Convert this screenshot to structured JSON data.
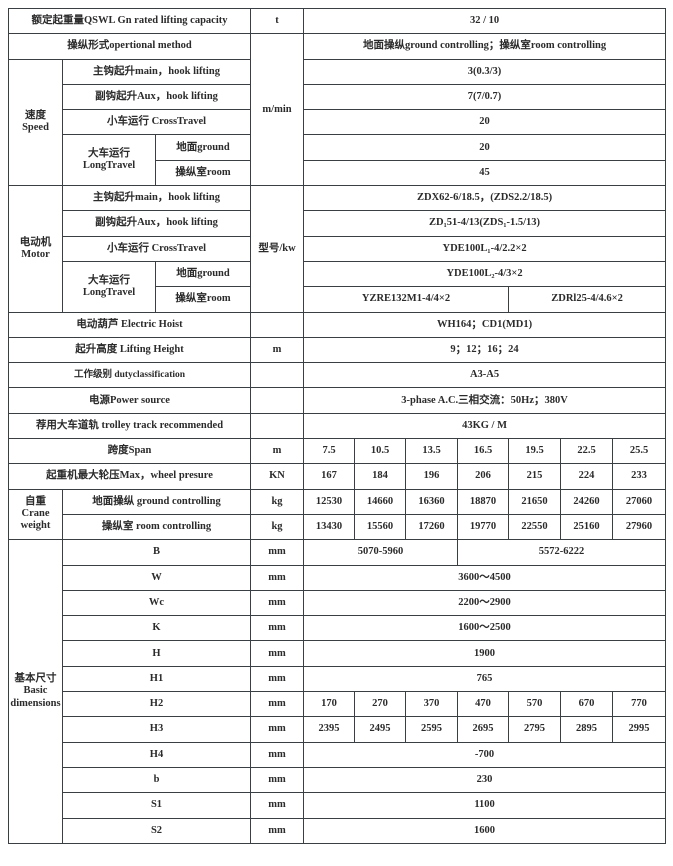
{
  "capacity": {
    "label": "额定起重量QSWL Gn rated lifting capacity",
    "unit": "t",
    "value": "32 / 10"
  },
  "method": {
    "label": "操纵形式opertional method",
    "value": "地面操纵ground controlling；操纵室room controlling"
  },
  "speed": {
    "group_cn": "速度",
    "group_en": "Speed",
    "unit": "m/min",
    "main": {
      "label": "主钩起升main，hook lifting",
      "value": "3(0.3/3)"
    },
    "aux": {
      "label": "副钩起升Aux，hook lifting",
      "value": "7(7/0.7)"
    },
    "cross": {
      "label": "小车运行 CrossTravel",
      "value": "20"
    },
    "long": {
      "label_cn": "大车运行",
      "label_en": "LongTravel",
      "ground": {
        "label": "地面ground",
        "value": "20"
      },
      "room": {
        "label": "操纵室room",
        "value": "45"
      }
    }
  },
  "motor": {
    "group_cn": "电动机",
    "group_en": "Motor",
    "unit": "型号/kw",
    "main": {
      "label": "主钩起升main，hook lifting",
      "value": "ZDX62-6/18.5，(ZDS2.2/18.5)"
    },
    "aux": {
      "label": "副钩起升Aux，hook lifting",
      "value": "ZD₁51-4/13(ZDS₁-1.5/13)"
    },
    "cross": {
      "label": "小车运行 CrossTravel",
      "value": "YDE100L₁-4/2.2×2"
    },
    "long": {
      "label_cn": "大车运行",
      "label_en": "LongTravel",
      "ground": {
        "label": "地面ground",
        "value": "YDE100L₂-4/3×2"
      },
      "room": {
        "label": "操纵室room",
        "values": [
          "YZRE132M1-4/4×2",
          "ZDRl25-4/4.6×2"
        ]
      }
    }
  },
  "hoist": {
    "label": "电动葫芦 Electric Hoist",
    "value": "WH164；CD1(MD1)"
  },
  "height": {
    "label": "起升高度 Lifting Height",
    "unit": "m",
    "value": "9；12；16；24"
  },
  "duty": {
    "label": "工作级别 dutyclassification",
    "value": "A3-A5"
  },
  "power": {
    "label": "电源Power source",
    "value": "3-phase A.C.三相交流：50Hz；380V"
  },
  "track": {
    "label": "荐用大车道轨 trolley track recommended",
    "value": "43KG / M"
  },
  "span": {
    "label": "跨度Span",
    "unit": "m",
    "values": [
      "7.5",
      "10.5",
      "13.5",
      "16.5",
      "19.5",
      "22.5",
      "25.5"
    ]
  },
  "wheel": {
    "label": "起重机最大轮压Max，wheel presure",
    "unit": "KN",
    "values": [
      "167",
      "184",
      "196",
      "206",
      "215",
      "224",
      "233"
    ]
  },
  "weight": {
    "group_cn": "自重",
    "group_en": "Crane weight",
    "ground": {
      "label": "地面操纵 ground controlling",
      "unit": "kg",
      "values": [
        "12530",
        "14660",
        "16360",
        "18870",
        "21650",
        "24260",
        "27060"
      ]
    },
    "room": {
      "label": "操纵室 room controlling",
      "unit": "kg",
      "values": [
        "13430",
        "15560",
        "17260",
        "19770",
        "22550",
        "25160",
        "27960"
      ]
    }
  },
  "dims": {
    "group_cn": "基本尺寸",
    "group_en": "Basic dimensions",
    "B": {
      "label": "B",
      "unit": "mm",
      "values": [
        "5070-5960",
        "5572-6222"
      ]
    },
    "W": {
      "label": "W",
      "unit": "mm",
      "value": "3600～4500"
    },
    "Wc": {
      "label": "Wc",
      "unit": "mm",
      "value": "2200～2900"
    },
    "K": {
      "label": "K",
      "unit": "mm",
      "value": "1600～2500"
    },
    "H": {
      "label": "H",
      "unit": "mm",
      "value": "1900"
    },
    "H1": {
      "label": "H1",
      "unit": "mm",
      "value": "765"
    },
    "H2": {
      "label": "H2",
      "unit": "mm",
      "values": [
        "170",
        "270",
        "370",
        "470",
        "570",
        "670",
        "770"
      ]
    },
    "H3": {
      "label": "H3",
      "unit": "mm",
      "values": [
        "2395",
        "2495",
        "2595",
        "2695",
        "2795",
        "2895",
        "2995"
      ]
    },
    "H4": {
      "label": "H4",
      "unit": "mm",
      "value": "-700"
    },
    "b": {
      "label": "b",
      "unit": "mm",
      "value": "230"
    },
    "S1": {
      "label": "S1",
      "unit": "mm",
      "value": "1100"
    },
    "S2": {
      "label": "S2",
      "unit": "mm",
      "value": "1600"
    }
  }
}
